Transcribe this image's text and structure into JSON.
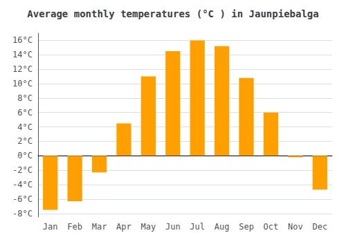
{
  "chart_data": {
    "type": "bar",
    "title": "Average monthly temperatures (°C ) in Jaunpiebalga",
    "categories": [
      "Jan",
      "Feb",
      "Mar",
      "Apr",
      "May",
      "Jun",
      "Jul",
      "Aug",
      "Sep",
      "Oct",
      "Nov",
      "Dec"
    ],
    "values": [
      -7.5,
      -6.3,
      -2.3,
      4.5,
      11.0,
      14.5,
      16.0,
      15.2,
      10.8,
      6.0,
      -0.2,
      -4.7
    ],
    "color": "#FFA000",
    "ylim": [
      -8.5,
      17
    ],
    "yticks": [
      {
        "value": -8,
        "label": "-8°C"
      },
      {
        "value": -6,
        "label": "-6°C"
      },
      {
        "value": -4,
        "label": "-4°C"
      },
      {
        "value": -2,
        "label": "-2°C"
      },
      {
        "value": 0,
        "label": "0°C"
      },
      {
        "value": 2,
        "label": "2°C"
      },
      {
        "value": 4,
        "label": "4°C"
      },
      {
        "value": 6,
        "label": "6°C"
      },
      {
        "value": 8,
        "label": "8°C"
      },
      {
        "value": 10,
        "label": "10°C"
      },
      {
        "value": 12,
        "label": "12°C"
      },
      {
        "value": 14,
        "label": "14°C"
      },
      {
        "value": 16,
        "label": "16°C"
      }
    ],
    "grid": true
  }
}
